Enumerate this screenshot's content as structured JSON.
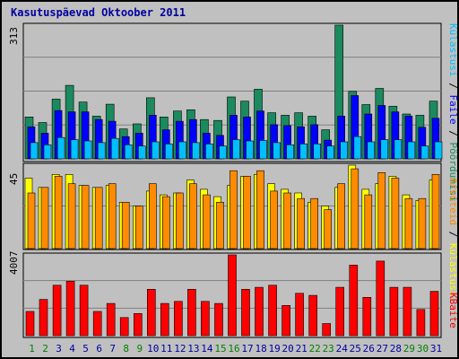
{
  "chart_data": [
    {
      "type": "bar",
      "title": "Kasutuspäevad Oktoober 2011",
      "categories": [
        "1",
        "2",
        "3",
        "4",
        "5",
        "6",
        "7",
        "8",
        "9",
        "10",
        "11",
        "12",
        "13",
        "14",
        "15",
        "16",
        "17",
        "18",
        "19",
        "20",
        "21",
        "22",
        "23",
        "24",
        "25",
        "26",
        "27",
        "28",
        "29",
        "30",
        "31"
      ],
      "weekend_days": [
        "1",
        "2",
        "8",
        "9",
        "15",
        "16",
        "22",
        "23",
        "29",
        "30"
      ],
      "ylim": [
        0,
        313
      ],
      "ymax_label": "313",
      "legend": [
        "Külastusi",
        "Faile",
        "Pöördumisi"
      ],
      "legend_separator": " / ",
      "series": [
        {
          "name": "Pöördumisi",
          "color": "#1b8a5e",
          "values": [
            98,
            85,
            140,
            172,
            133,
            100,
            128,
            70,
            82,
            143,
            98,
            112,
            115,
            92,
            90,
            145,
            135,
            163,
            108,
            102,
            108,
            100,
            68,
            313,
            158,
            127,
            165,
            123,
            105,
            102,
            135
          ]
        },
        {
          "name": "Faile",
          "color": "#0000ff",
          "values": [
            75,
            60,
            113,
            110,
            110,
            92,
            88,
            52,
            60,
            102,
            68,
            88,
            92,
            60,
            55,
            102,
            98,
            112,
            80,
            78,
            75,
            80,
            44,
            100,
            148,
            105,
            125,
            110,
            100,
            74,
            95
          ]
        },
        {
          "name": "Külastusi",
          "color": "#00bfff",
          "values": [
            38,
            33,
            50,
            45,
            42,
            38,
            48,
            33,
            30,
            40,
            35,
            40,
            38,
            35,
            30,
            45,
            42,
            43,
            38,
            33,
            35,
            35,
            30,
            40,
            52,
            40,
            45,
            45,
            40,
            30,
            40
          ]
        }
      ]
    },
    {
      "type": "bar",
      "categories": [
        "1",
        "2",
        "3",
        "4",
        "5",
        "6",
        "7",
        "8",
        "9",
        "10",
        "11",
        "12",
        "13",
        "14",
        "15",
        "16",
        "17",
        "18",
        "19",
        "20",
        "21",
        "22",
        "23",
        "24",
        "25",
        "26",
        "27",
        "28",
        "29",
        "30",
        "31"
      ],
      "ylim": [
        0,
        45
      ],
      "ymax_label": "45",
      "legend": [
        "Arvuteid",
        "Külastusi"
      ],
      "legend_separator": " / ",
      "series": [
        {
          "name": "Külastusi",
          "color": "#ffff00",
          "values": [
            38,
            33,
            40,
            40,
            34,
            33,
            34,
            25,
            23,
            31,
            29,
            30,
            37,
            32,
            28,
            34,
            39,
            40,
            35,
            32,
            30,
            25,
            23,
            33,
            45,
            32,
            35,
            39,
            29,
            26,
            37
          ]
        },
        {
          "name": "Arvuteid",
          "color": "#ff8c00",
          "values": [
            30,
            33,
            39,
            35,
            34,
            33,
            35,
            25,
            23,
            35,
            28,
            30,
            35,
            29,
            25,
            42,
            39,
            42,
            31,
            30,
            27,
            27,
            21,
            35,
            43,
            29,
            41,
            38,
            27,
            27,
            40
          ]
        }
      ]
    },
    {
      "type": "bar",
      "categories": [
        "1",
        "2",
        "3",
        "4",
        "5",
        "6",
        "7",
        "8",
        "9",
        "10",
        "11",
        "12",
        "13",
        "14",
        "15",
        "16",
        "17",
        "18",
        "19",
        "20",
        "21",
        "22",
        "23",
        "24",
        "25",
        "26",
        "27",
        "28",
        "29",
        "30",
        "31"
      ],
      "ylim": [
        0,
        4007
      ],
      "ymax_label": "4007",
      "legend": [
        "KBaite"
      ],
      "series": [
        {
          "name": "KBaite",
          "color": "#ff0000",
          "values": [
            1200,
            1800,
            2500,
            2700,
            2500,
            1200,
            1600,
            900,
            1100,
            2300,
            1600,
            1700,
            2300,
            1700,
            1600,
            4007,
            2300,
            2400,
            2500,
            1500,
            2100,
            2000,
            600,
            2400,
            3500,
            1900,
            3700,
            2400,
            2400,
            1300,
            2200
          ]
        }
      ]
    }
  ],
  "colors": {
    "background": "#c0c0c0",
    "plot_border": "#000000",
    "title": "#0000a0",
    "day_normal": "#0000a0",
    "day_weekend": "#008000",
    "ymax_label": "#000000"
  }
}
